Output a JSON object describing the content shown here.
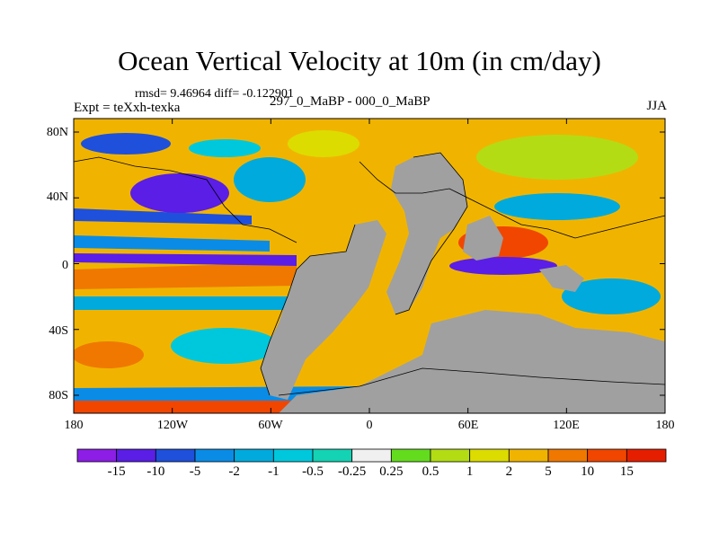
{
  "title": "Ocean Vertical Velocity at 10m (in cm/day)",
  "stats": "rmsd= 9.46964  diff= -0.122901",
  "experiment": "Expt = teXxh-texka",
  "subtitle": "297_0_MaBP - 000_0_MaBP",
  "season": "JJA",
  "lat_ticks": [
    "80N",
    "40N",
    "0",
    "40S",
    "80S"
  ],
  "lon_ticks": [
    "180",
    "120W",
    "60W",
    "0",
    "60E",
    "120E",
    "180"
  ],
  "colorbar": {
    "labels": [
      "-15",
      "-10",
      "-5",
      "-2",
      "-1",
      "-0.5",
      "-0.25",
      "0.25",
      "0.5",
      "1",
      "2",
      "5",
      "10",
      "15"
    ],
    "colors": [
      "#8c1ee6",
      "#5a1ee6",
      "#1e50dc",
      "#0a8ce6",
      "#00aadc",
      "#00c8dc",
      "#14d2b4",
      "#f0f0f0",
      "#64dc1e",
      "#b4dc14",
      "#dcdc00",
      "#f0b400",
      "#f07800",
      "#f04600",
      "#e61e00"
    ]
  },
  "land_color": "#a0a0a0"
}
